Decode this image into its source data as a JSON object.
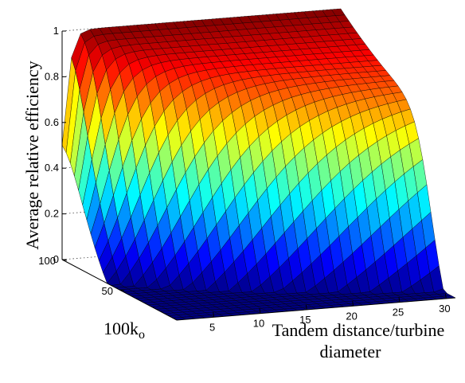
{
  "chart_data": {
    "type": "surface",
    "title": "",
    "zlabel": "Average relative efficiency",
    "ylabel": "100k",
    "ylabel_subscript": "o",
    "xlabel_line1": "Tandem distance/turbine",
    "xlabel_line2": "diameter",
    "xlim": [
      1,
      31
    ],
    "ylim": [
      0,
      100
    ],
    "zlim": [
      0,
      1
    ],
    "xticks": [
      5,
      10,
      15,
      20,
      25,
      30
    ],
    "yticks": [
      50,
      100
    ],
    "zticks": [
      0,
      0.2,
      0.4,
      0.6,
      0.8,
      1
    ],
    "ztick_labels": [
      "0",
      "0.2",
      "0.4",
      "0.6",
      "0.8",
      "1"
    ],
    "grid": true,
    "colormap": "jet",
    "surface_model": "efficiency rises with tandem distance and with 100k_o, saturating near 1 at large distance and large 100k_o",
    "samples": [
      {
        "x": 1,
        "y": 100,
        "z": 0.1
      },
      {
        "x": 3,
        "y": 100,
        "z": 0.85
      },
      {
        "x": 5,
        "y": 100,
        "z": 0.97
      },
      {
        "x": 15,
        "y": 100,
        "z": 0.98
      },
      {
        "x": 30,
        "y": 100,
        "z": 0.97
      },
      {
        "x": 5,
        "y": 50,
        "z": 0.3
      },
      {
        "x": 15,
        "y": 50,
        "z": 0.7
      },
      {
        "x": 30,
        "y": 50,
        "z": 0.8
      },
      {
        "x": 5,
        "y": 20,
        "z": 0.05
      },
      {
        "x": 15,
        "y": 20,
        "z": 0.25
      },
      {
        "x": 30,
        "y": 20,
        "z": 0.4
      },
      {
        "x": 30,
        "y": 0,
        "z": 0.0
      }
    ]
  }
}
